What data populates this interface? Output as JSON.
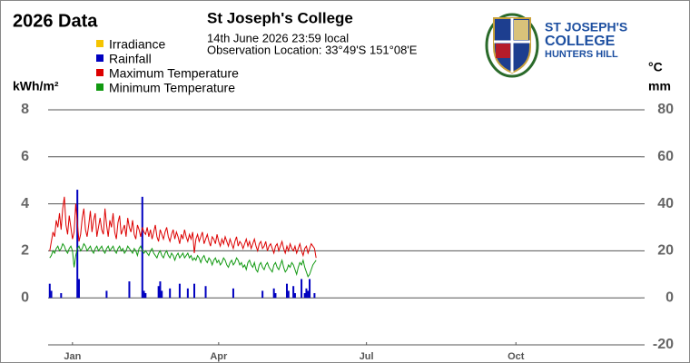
{
  "chart_data": {
    "type": "line",
    "title": "2026 Data",
    "header": "St Joseph's College",
    "subtitle": [
      "14th June 2026  23:59 local",
      "Observation Location: 33°49'S 151°08'E"
    ],
    "ylabel": "kWh/m²",
    "y2label": [
      "°C",
      "mm"
    ],
    "xlim": [
      0,
      365
    ],
    "xticks": [
      {
        "value": 15,
        "label": "Jan"
      },
      {
        "value": 105,
        "label": "Apr"
      },
      {
        "value": 196,
        "label": "Jul"
      },
      {
        "value": 288,
        "label": "Oct"
      }
    ],
    "ylim": [
      -2,
      8
    ],
    "yticks": [
      0,
      2,
      4,
      6,
      8
    ],
    "y2lim": [
      -20,
      80
    ],
    "y2ticks": [
      -20,
      0,
      20,
      40,
      60,
      80
    ],
    "grid": true,
    "x": [
      1,
      2,
      3,
      4,
      5,
      6,
      7,
      8,
      9,
      10,
      11,
      12,
      13,
      14,
      15,
      16,
      17,
      18,
      19,
      20,
      21,
      22,
      23,
      24,
      25,
      26,
      27,
      28,
      29,
      30,
      31,
      32,
      33,
      34,
      35,
      36,
      37,
      38,
      39,
      40,
      41,
      42,
      43,
      44,
      45,
      46,
      47,
      48,
      49,
      50,
      51,
      52,
      53,
      54,
      55,
      56,
      57,
      58,
      59,
      60,
      61,
      62,
      63,
      64,
      65,
      66,
      67,
      68,
      69,
      70,
      71,
      72,
      73,
      74,
      75,
      76,
      77,
      78,
      79,
      80,
      81,
      82,
      83,
      84,
      85,
      86,
      87,
      88,
      89,
      90,
      91,
      92,
      93,
      94,
      95,
      96,
      97,
      98,
      99,
      100,
      101,
      102,
      103,
      104,
      105,
      106,
      107,
      108,
      109,
      110,
      111,
      112,
      113,
      114,
      115,
      116,
      117,
      118,
      119,
      120,
      121,
      122,
      123,
      124,
      125,
      126,
      127,
      128,
      129,
      130,
      131,
      132,
      133,
      134,
      135,
      136,
      137,
      138,
      139,
      140,
      141,
      142,
      143,
      144,
      145,
      146,
      147,
      148,
      149,
      150,
      151,
      152,
      153,
      154,
      155,
      156,
      157,
      158,
      159,
      160,
      161,
      162,
      163,
      164,
      165
    ],
    "series": [
      {
        "name": "Irradiance",
        "color": "#f5c400",
        "kind": "line",
        "axis": "y",
        "values": [
          null,
          null,
          null,
          null,
          null,
          null,
          null,
          null,
          null,
          null,
          null,
          null,
          null,
          null,
          null,
          null,
          null,
          null,
          null,
          null,
          null,
          null,
          null,
          null,
          null,
          null,
          null,
          null,
          null,
          null,
          null,
          null,
          null,
          null,
          null,
          null,
          null,
          null,
          null,
          null,
          null,
          null,
          null,
          null,
          null,
          null,
          null,
          null,
          null,
          null,
          null,
          null,
          null,
          null,
          null,
          null,
          null,
          null,
          null,
          null,
          null,
          null,
          null,
          null,
          null,
          null,
          null,
          null,
          null,
          null,
          null,
          null,
          null,
          null,
          null,
          null,
          null,
          null,
          null,
          null,
          null,
          null,
          null,
          null,
          null,
          null,
          null,
          null,
          null,
          null,
          null,
          null,
          null,
          null,
          null,
          null,
          null,
          null,
          null,
          null,
          null,
          null,
          null,
          null,
          null,
          null,
          null,
          null,
          null,
          null,
          null,
          null,
          null,
          null,
          null,
          null,
          null,
          null,
          null,
          null,
          null,
          null,
          null,
          null,
          null,
          null,
          null,
          null,
          null,
          null,
          null,
          null,
          null,
          null,
          null,
          null,
          null,
          null,
          null,
          null,
          null,
          null,
          null,
          null,
          null,
          null,
          null,
          null,
          null,
          null,
          null,
          null,
          null,
          null,
          null,
          null,
          null,
          null,
          null,
          null,
          null,
          null,
          null,
          null,
          null
        ]
      },
      {
        "name": "Rainfall",
        "color": "#0000c0",
        "kind": "bar",
        "axis": "y2",
        "values": [
          6,
          3,
          0,
          0,
          0,
          0,
          0,
          2,
          0,
          0,
          0,
          0,
          0,
          0,
          0,
          0,
          0,
          46,
          8,
          0,
          0,
          0,
          0,
          0,
          0,
          0,
          0,
          0,
          0,
          0,
          0,
          0,
          0,
          0,
          0,
          3,
          0,
          0,
          0,
          0,
          0,
          0,
          0,
          0,
          0,
          0,
          0,
          0,
          0,
          7,
          0,
          0,
          0,
          0,
          0,
          0,
          0,
          43,
          3,
          2,
          0,
          0,
          0,
          0,
          0,
          0,
          0,
          5,
          7,
          3,
          0,
          0,
          0,
          0,
          4,
          0,
          0,
          0,
          0,
          0,
          6,
          0,
          0,
          0,
          0,
          4,
          0,
          0,
          0,
          6,
          0,
          0,
          0,
          0,
          0,
          0,
          5,
          0,
          0,
          0,
          0,
          0,
          0,
          0,
          0,
          0,
          0,
          0,
          0,
          0,
          0,
          0,
          0,
          4,
          0,
          0,
          0,
          0,
          0,
          0,
          0,
          0,
          0,
          0,
          0,
          0,
          0,
          0,
          0,
          0,
          0,
          3,
          0,
          0,
          0,
          0,
          0,
          0,
          4,
          2,
          0,
          0,
          0,
          0,
          0,
          0,
          6,
          3,
          0,
          0,
          5,
          2,
          0,
          0,
          0,
          8,
          0,
          2,
          4,
          3,
          8,
          0,
          0,
          2,
          0
        ]
      },
      {
        "name": "Maximum Temperature",
        "color": "#dd0000",
        "kind": "line",
        "axis": "y2",
        "values": [
          20,
          24,
          28,
          26,
          33,
          30,
          36,
          29,
          38,
          43,
          31,
          27,
          35,
          30,
          25,
          28,
          40,
          32,
          24,
          27,
          34,
          38,
          29,
          26,
          31,
          37,
          28,
          33,
          36,
          26,
          30,
          34,
          29,
          27,
          38,
          31,
          26,
          33,
          30,
          36,
          28,
          25,
          32,
          35,
          27,
          29,
          31,
          26,
          34,
          30,
          28,
          33,
          27,
          25,
          31,
          29,
          26,
          30,
          28,
          27,
          30,
          26,
          29,
          25,
          28,
          31,
          26,
          24,
          29,
          27,
          25,
          28,
          30,
          26,
          24,
          27,
          29,
          25,
          28,
          26,
          23,
          27,
          25,
          29,
          26,
          24,
          27,
          25,
          28,
          19,
          25,
          27,
          24,
          26,
          28,
          23,
          25,
          27,
          24,
          22,
          26,
          25,
          23,
          27,
          24,
          22,
          25,
          23,
          26,
          24,
          22,
          25,
          23,
          21,
          24,
          26,
          22,
          24,
          23,
          21,
          23,
          25,
          22,
          24,
          21,
          23,
          25,
          22,
          20,
          23,
          24,
          21,
          22,
          24,
          20,
          22,
          23,
          21,
          19,
          22,
          23,
          20,
          22,
          24,
          21,
          19,
          22,
          20,
          23,
          21,
          20,
          22,
          19,
          21,
          23,
          20,
          18,
          21,
          22,
          19,
          21,
          23,
          22,
          21,
          17
        ]
      },
      {
        "name": "Minimum Temperature",
        "color": "#119911",
        "kind": "line",
        "axis": "y2",
        "values": [
          17,
          18,
          20,
          19,
          21,
          22,
          20,
          21,
          23,
          22,
          20,
          19,
          21,
          22,
          20,
          13,
          18,
          21,
          22,
          20,
          21,
          23,
          22,
          20,
          21,
          22,
          20,
          19,
          21,
          22,
          20,
          21,
          22,
          20,
          19,
          21,
          22,
          20,
          21,
          22,
          20,
          19,
          21,
          22,
          20,
          21,
          19,
          20,
          22,
          21,
          20,
          19,
          21,
          20,
          18,
          21,
          22,
          20,
          19,
          20,
          19,
          18,
          20,
          21,
          19,
          18,
          17,
          19,
          20,
          18,
          17,
          19,
          20,
          18,
          17,
          19,
          18,
          16,
          18,
          19,
          17,
          18,
          19,
          17,
          18,
          19,
          17,
          18,
          16,
          17,
          16,
          18,
          17,
          15,
          17,
          18,
          16,
          15,
          17,
          16,
          14,
          16,
          17,
          15,
          16,
          14,
          15,
          17,
          16,
          14,
          13,
          15,
          16,
          14,
          15,
          17,
          16,
          14,
          15,
          13,
          14,
          12,
          15,
          16,
          14,
          13,
          15,
          12,
          11,
          14,
          15,
          13,
          12,
          14,
          15,
          13,
          12,
          11,
          14,
          15,
          13,
          12,
          14,
          16,
          13,
          11,
          12,
          14,
          13,
          15,
          14,
          12,
          10,
          13,
          15,
          14,
          16,
          13,
          11,
          9,
          10,
          12,
          14,
          15,
          16
        ]
      }
    ]
  },
  "logo": {
    "lines": [
      "ST JOSEPH'S",
      "COLLEGE",
      "HUNTERS HILL"
    ]
  }
}
